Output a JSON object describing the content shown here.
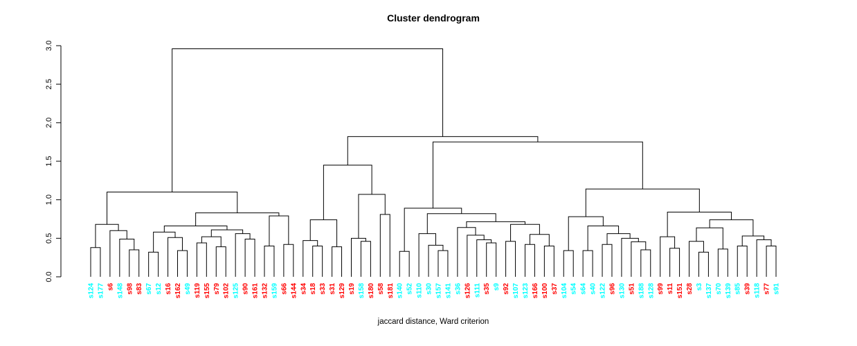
{
  "title": "Cluster dendrogram",
  "footer": "jaccard distance, Ward criterion",
  "chart_data": {
    "type": "dendrogram",
    "title": "Cluster dendrogram",
    "xlabel": "jaccard distance, Ward criterion",
    "ylabel": "",
    "ylim": [
      0,
      3.0
    ],
    "yticks": [
      0.0,
      0.5,
      1.0,
      1.5,
      2.0,
      2.5,
      3.0
    ],
    "ytick_labels": [
      "0.0",
      "0.5",
      "1.0",
      "1.5",
      "2.0",
      "2.5",
      "3.0"
    ],
    "grid": false,
    "legend": null,
    "branch_color": "#000000",
    "label_colors": {
      "cyan": "#00FFFF",
      "red": "#FF0000"
    },
    "leaves": [
      {
        "id": "s124",
        "color": "cyan"
      },
      {
        "id": "s177",
        "color": "cyan"
      },
      {
        "id": "s6",
        "color": "red"
      },
      {
        "id": "s148",
        "color": "cyan"
      },
      {
        "id": "s98",
        "color": "red"
      },
      {
        "id": "s83",
        "color": "red"
      },
      {
        "id": "s67",
        "color": "cyan"
      },
      {
        "id": "s12",
        "color": "cyan"
      },
      {
        "id": "s16",
        "color": "red"
      },
      {
        "id": "s162",
        "color": "red"
      },
      {
        "id": "s49",
        "color": "cyan"
      },
      {
        "id": "s119",
        "color": "red"
      },
      {
        "id": "s155",
        "color": "red"
      },
      {
        "id": "s79",
        "color": "red"
      },
      {
        "id": "s102",
        "color": "red"
      },
      {
        "id": "s125",
        "color": "cyan"
      },
      {
        "id": "s90",
        "color": "red"
      },
      {
        "id": "s161",
        "color": "red"
      },
      {
        "id": "s132",
        "color": "red"
      },
      {
        "id": "s159",
        "color": "cyan"
      },
      {
        "id": "s66",
        "color": "red"
      },
      {
        "id": "s144",
        "color": "red"
      },
      {
        "id": "s34",
        "color": "red"
      },
      {
        "id": "s18",
        "color": "red"
      },
      {
        "id": "s33",
        "color": "red"
      },
      {
        "id": "s31",
        "color": "red"
      },
      {
        "id": "s129",
        "color": "red"
      },
      {
        "id": "s19",
        "color": "red"
      },
      {
        "id": "s158",
        "color": "cyan"
      },
      {
        "id": "s180",
        "color": "red"
      },
      {
        "id": "s58",
        "color": "red"
      },
      {
        "id": "s181",
        "color": "red"
      },
      {
        "id": "s140",
        "color": "cyan"
      },
      {
        "id": "s52",
        "color": "cyan"
      },
      {
        "id": "s110",
        "color": "cyan"
      },
      {
        "id": "s30",
        "color": "cyan"
      },
      {
        "id": "s157",
        "color": "cyan"
      },
      {
        "id": "s141",
        "color": "cyan"
      },
      {
        "id": "s36",
        "color": "cyan"
      },
      {
        "id": "s126",
        "color": "red"
      },
      {
        "id": "s111",
        "color": "cyan"
      },
      {
        "id": "s35",
        "color": "red"
      },
      {
        "id": "s9",
        "color": "cyan"
      },
      {
        "id": "s92",
        "color": "red"
      },
      {
        "id": "s107",
        "color": "cyan"
      },
      {
        "id": "s123",
        "color": "cyan"
      },
      {
        "id": "s166",
        "color": "red"
      },
      {
        "id": "s100",
        "color": "red"
      },
      {
        "id": "s37",
        "color": "red"
      },
      {
        "id": "s104",
        "color": "cyan"
      },
      {
        "id": "s54",
        "color": "cyan"
      },
      {
        "id": "s64",
        "color": "cyan"
      },
      {
        "id": "s40",
        "color": "cyan"
      },
      {
        "id": "s122",
        "color": "cyan"
      },
      {
        "id": "s96",
        "color": "red"
      },
      {
        "id": "s130",
        "color": "cyan"
      },
      {
        "id": "s51",
        "color": "red"
      },
      {
        "id": "s188",
        "color": "cyan"
      },
      {
        "id": "s128",
        "color": "cyan"
      },
      {
        "id": "s99",
        "color": "red"
      },
      {
        "id": "s11",
        "color": "red"
      },
      {
        "id": "s151",
        "color": "red"
      },
      {
        "id": "s28",
        "color": "red"
      },
      {
        "id": "s3",
        "color": "cyan"
      },
      {
        "id": "s137",
        "color": "cyan"
      },
      {
        "id": "s70",
        "color": "cyan"
      },
      {
        "id": "s139",
        "color": "cyan"
      },
      {
        "id": "s85",
        "color": "cyan"
      },
      {
        "id": "s39",
        "color": "red"
      },
      {
        "id": "s118",
        "color": "cyan"
      },
      {
        "id": "s77",
        "color": "red"
      },
      {
        "id": "s91",
        "color": "cyan"
      }
    ],
    "tree": [
      2.96,
      [
        1.1,
        [
          0.68,
          [
            0.38,
            "s124",
            "s177"
          ],
          [
            0.6,
            "s6",
            [
              0.49,
              "s148",
              [
                0.35,
                "s98",
                "s83"
              ]
            ]
          ]
        ],
        [
          0.83,
          [
            0.66,
            [
              0.58,
              [
                0.32,
                "s67",
                "s12"
              ],
              [
                0.51,
                "s16",
                [
                  0.34,
                  "s162",
                  "s49"
                ]
              ]
            ],
            [
              0.61,
              [
                0.52,
                [
                  0.44,
                  "s119",
                  "s155"
                ],
                [
                  0.39,
                  "s79",
                  "s102"
                ]
              ],
              [
                0.56,
                "s125",
                [
                  0.49,
                  "s90",
                  "s161"
                ]
              ]
            ]
          ],
          [
            0.79,
            [
              0.4,
              "s132",
              "s159"
            ],
            [
              0.42,
              "s66",
              "s144"
            ]
          ]
        ]
      ],
      [
        1.82,
        [
          1.45,
          [
            0.74,
            [
              0.47,
              "s34",
              [
                0.4,
                "s18",
                "s33"
              ]
            ],
            [
              0.39,
              "s31",
              "s129"
            ]
          ],
          [
            1.07,
            [
              0.5,
              "s19",
              [
                0.46,
                "s158",
                "s180"
              ]
            ],
            [
              0.81,
              "s58",
              "s181"
            ]
          ]
        ],
        [
          1.75,
          [
            0.89,
            [
              0.33,
              "s140",
              "s52"
            ],
            [
              0.82,
              [
                0.56,
                "s110",
                [
                  0.41,
                  "s30",
                  [
                    0.34,
                    "s157",
                    "s141"
                  ]
                ]
              ],
              [
                0.715,
                [
                  0.64,
                  "s36",
                  [
                    0.54,
                    "s126",
                    [
                      0.48,
                      "s111",
                      [
                        0.44,
                        "s35",
                        "s9"
                      ]
                    ]
                  ]
                ],
                [
                  0.68,
                  [
                    0.46,
                    "s92",
                    "s107"
                  ],
                  [
                    0.55,
                    [
                      0.42,
                      "s123",
                      "s166"
                    ],
                    [
                      0.4,
                      "s100",
                      "s37"
                    ]
                  ]
                ]
              ]
            ]
          ],
          [
            1.14,
            [
              0.78,
              [
                0.34,
                "s104",
                "s54"
              ],
              [
                0.66,
                [
                  0.34,
                  "s64",
                  "s40"
                ],
                [
                  0.56,
                  [
                    0.42,
                    "s122",
                    "s96"
                  ],
                  [
                    0.5,
                    "s130",
                    [
                      0.455,
                      "s51",
                      [
                        0.35,
                        "s188",
                        "s128"
                      ]
                    ]
                  ]
                ]
              ]
            ],
            [
              0.84,
              [
                0.52,
                "s99",
                [
                  0.37,
                  "s11",
                  "s151"
                ]
              ],
              [
                0.74,
                [
                  0.635,
                  [
                    0.46,
                    "s28",
                    [
                      0.32,
                      "s3",
                      "s137"
                    ]
                  ],
                  [
                    0.36,
                    "s70",
                    "s139"
                  ]
                ],
                [
                  0.53,
                  [
                    0.4,
                    "s85",
                    "s39"
                  ],
                  [
                    0.48,
                    "s118",
                    [
                      0.4,
                      "s77",
                      "s91"
                    ]
                  ]
                ]
              ]
            ]
          ]
        ]
      ]
    ]
  }
}
